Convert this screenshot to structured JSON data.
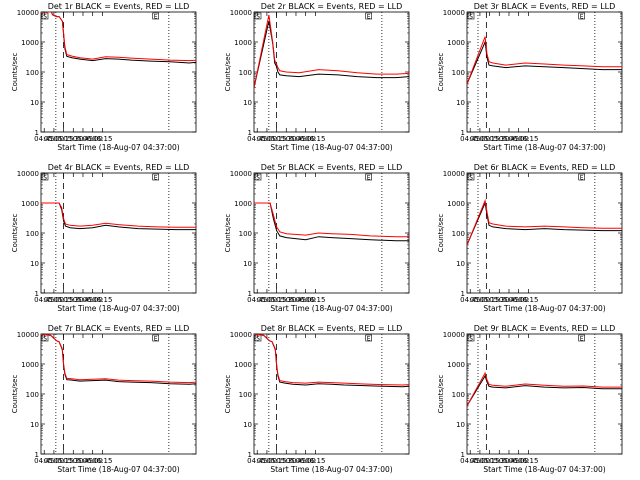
{
  "legend_text": "BLACK = Events, RED = LLD",
  "corner_labels": [
    "S",
    "E"
  ],
  "xlabel": "Start Time (18-Aug-07 04:37:00)",
  "ylabel": "Counts/sec",
  "colors": {
    "events": "#000000",
    "lld": "#ff0000"
  },
  "time_ticks": [
    "04:45",
    "05:00",
    "05:15",
    "05:30",
    "05:45",
    "06:00",
    "06:15"
  ],
  "panels": [
    {
      "title": "Det 1r",
      "chart_data": {
        "type": "line",
        "yscale": "log",
        "ylim": [
          1,
          10000
        ],
        "xlim": [
          -20,
          220
        ],
        "y_ticks": [
          "1",
          "10",
          "100",
          "1000",
          "10000"
        ],
        "markers": {
          "dotted": [
            3,
            178
          ],
          "dashed": [
            15
          ]
        },
        "series": [
          {
            "name": "Events",
            "x": [
              -20,
              -4,
              -2,
              4,
              8,
              13,
              15,
              17,
              20,
              28,
              40,
              60,
              80,
              100,
              120,
              150,
              180,
              210,
              220
            ],
            "values": [
              10000,
              10000,
              8000,
              7000,
              7000,
              5000,
              1800,
              600,
              330,
              300,
              270,
              240,
              280,
              270,
              250,
              230,
              220,
              200,
              210
            ]
          },
          {
            "name": "LLD",
            "x": [
              -20,
              -4,
              -2,
              4,
              8,
              13,
              15,
              17,
              20,
              28,
              40,
              60,
              80,
              100,
              120,
              150,
              180,
              210,
              220
            ],
            "values": [
              10000,
              10000,
              8000,
              7000,
              7000,
              5000,
              2000,
              700,
              380,
              340,
              300,
              270,
              320,
              310,
              290,
              270,
              250,
              240,
              245
            ]
          }
        ]
      }
    },
    {
      "title": "Det 2r",
      "chart_data": {
        "type": "line",
        "yscale": "log",
        "ylim": [
          1,
          10000
        ],
        "xlim": [
          -20,
          220
        ],
        "y_ticks": [
          "1",
          "10",
          "100",
          "1000",
          "10000"
        ],
        "markers": {
          "dotted": [
            3,
            178
          ],
          "dashed": [
            15
          ]
        },
        "series": [
          {
            "name": "Events",
            "x": [
              -20,
              3,
              9,
              12,
              15,
              17,
              20,
              30,
              50,
              80,
              110,
              140,
              170,
              200,
              220
            ],
            "values": [
              30,
              5000,
              900,
              200,
              150,
              100,
              80,
              75,
              70,
              85,
              80,
              70,
              65,
              65,
              70
            ]
          },
          {
            "name": "LLD",
            "x": [
              -20,
              3,
              9,
              12,
              15,
              17,
              20,
              30,
              50,
              80,
              110,
              140,
              170,
              200,
              220
            ],
            "values": [
              30,
              8000,
              1000,
              250,
              180,
              140,
              110,
              100,
              95,
              120,
              110,
              95,
              85,
              85,
              90
            ]
          }
        ]
      }
    },
    {
      "title": "Det 3r",
      "chart_data": {
        "type": "line",
        "yscale": "log",
        "ylim": [
          1,
          10000
        ],
        "xlim": [
          -20,
          220
        ],
        "y_ticks": [
          "1",
          "10",
          "100",
          "1000",
          "10000"
        ],
        "markers": {
          "dotted": [
            -3,
            178
          ],
          "dashed": [
            10
          ]
        },
        "series": [
          {
            "name": "Events",
            "x": [
              -20,
              8,
              11,
              14,
              20,
              40,
              70,
              100,
              130,
              160,
              190,
              220
            ],
            "values": [
              40,
              1000,
              300,
              170,
              160,
              140,
              160,
              150,
              140,
              130,
              120,
              120
            ]
          },
          {
            "name": "LLD",
            "x": [
              -20,
              8,
              11,
              14,
              20,
              40,
              70,
              100,
              130,
              160,
              190,
              220
            ],
            "values": [
              40,
              1500,
              400,
              220,
              200,
              170,
              200,
              185,
              170,
              160,
              150,
              150
            ]
          }
        ]
      }
    },
    {
      "title": "Det 4r",
      "chart_data": {
        "type": "line",
        "yscale": "log",
        "ylim": [
          1,
          10000
        ],
        "xlim": [
          -20,
          220
        ],
        "y_ticks": [
          "1",
          "10",
          "100",
          "1000",
          "10000"
        ],
        "markers": {
          "dotted": [
            3,
            178
          ],
          "dashed": [
            15
          ]
        },
        "series": [
          {
            "name": "Events",
            "x": [
              -20,
              8,
              12,
              15,
              18,
              25,
              40,
              60,
              80,
              100,
              130,
              160,
              190,
              220
            ],
            "values": [
              1000,
              1000,
              600,
              250,
              170,
              150,
              140,
              150,
              180,
              160,
              140,
              135,
              130,
              130
            ]
          },
          {
            "name": "LLD",
            "x": [
              -20,
              8,
              12,
              15,
              18,
              25,
              40,
              60,
              80,
              100,
              130,
              160,
              190,
              220
            ],
            "values": [
              1000,
              1000,
              700,
              300,
              200,
              180,
              170,
              180,
              210,
              190,
              170,
              160,
              155,
              155
            ]
          }
        ]
      }
    },
    {
      "title": "Det 5r",
      "chart_data": {
        "type": "line",
        "yscale": "log",
        "ylim": [
          1,
          10000
        ],
        "xlim": [
          -20,
          220
        ],
        "y_ticks": [
          "1",
          "10",
          "100",
          "1000",
          "10000"
        ],
        "markers": {
          "dotted": [
            3,
            178
          ],
          "dashed": [
            15
          ]
        },
        "series": [
          {
            "name": "Events",
            "x": [
              -20,
              5,
              10,
              15,
              20,
              30,
              60,
              80,
              100,
              130,
              160,
              200,
              220
            ],
            "values": [
              1000,
              1000,
              300,
              120,
              80,
              70,
              60,
              75,
              70,
              65,
              60,
              55,
              55
            ]
          },
          {
            "name": "LLD",
            "x": [
              -20,
              5,
              10,
              15,
              20,
              30,
              60,
              80,
              100,
              130,
              160,
              200,
              220
            ],
            "values": [
              1000,
              1000,
              400,
              160,
              110,
              95,
              85,
              100,
              95,
              90,
              80,
              75,
              75
            ]
          }
        ]
      }
    },
    {
      "title": "Det 6r",
      "chart_data": {
        "type": "line",
        "yscale": "log",
        "ylim": [
          1,
          10000
        ],
        "xlim": [
          -20,
          220
        ],
        "y_ticks": [
          "1",
          "10",
          "100",
          "1000",
          "10000"
        ],
        "markers": {
          "dotted": [
            -3,
            178
          ],
          "dashed": [
            10
          ]
        },
        "series": [
          {
            "name": "Events",
            "x": [
              -20,
              8,
              11,
              14,
              20,
              40,
              70,
              100,
              130,
              160,
              190,
              220
            ],
            "values": [
              40,
              1000,
              400,
              180,
              160,
              140,
              130,
              140,
              130,
              125,
              120,
              120
            ]
          },
          {
            "name": "LLD",
            "x": [
              -20,
              8,
              11,
              14,
              20,
              40,
              70,
              100,
              130,
              160,
              190,
              220
            ],
            "values": [
              40,
              1200,
              500,
              220,
              200,
              170,
              160,
              170,
              160,
              150,
              145,
              145
            ]
          }
        ]
      }
    },
    {
      "title": "Det 7r",
      "chart_data": {
        "type": "line",
        "yscale": "log",
        "ylim": [
          1,
          10000
        ],
        "xlim": [
          -20,
          220
        ],
        "y_ticks": [
          "1",
          "10",
          "100",
          "1000",
          "10000"
        ],
        "markers": {
          "dotted": [
            3,
            178
          ],
          "dashed": [
            15
          ]
        },
        "series": [
          {
            "name": "Events",
            "x": [
              -20,
              -5,
              4,
              8,
              13,
              15,
              17,
              20,
              28,
              40,
              60,
              80,
              100,
              120,
              150,
              180,
              210,
              220
            ],
            "values": [
              10000,
              9000,
              6000,
              5500,
              3000,
              900,
              450,
              300,
              290,
              270,
              280,
              290,
              260,
              250,
              240,
              220,
              210,
              220
            ]
          },
          {
            "name": "LLD",
            "x": [
              -20,
              -5,
              4,
              8,
              13,
              15,
              17,
              20,
              28,
              40,
              60,
              80,
              100,
              120,
              150,
              180,
              210,
              220
            ],
            "values": [
              10000,
              9000,
              6000,
              5500,
              3200,
              1000,
              500,
              330,
              320,
              300,
              310,
              320,
              290,
              280,
              270,
              250,
              240,
              250
            ]
          }
        ]
      }
    },
    {
      "title": "Det 8r",
      "chart_data": {
        "type": "line",
        "yscale": "log",
        "ylim": [
          1,
          10000
        ],
        "xlim": [
          -20,
          220
        ],
        "y_ticks": [
          "1",
          "10",
          "100",
          "1000",
          "10000"
        ],
        "markers": {
          "dotted": [
            3,
            178
          ],
          "dashed": [
            15
          ]
        },
        "series": [
          {
            "name": "Events",
            "x": [
              -20,
              -5,
              4,
              8,
              13,
              15,
              17,
              20,
              28,
              40,
              60,
              80,
              100,
              120,
              150,
              180,
              210,
              220
            ],
            "values": [
              10000,
              9000,
              6000,
              5500,
              3000,
              900,
              400,
              250,
              230,
              210,
              200,
              220,
              210,
              200,
              190,
              180,
              175,
              180
            ]
          },
          {
            "name": "LLD",
            "x": [
              -20,
              -5,
              4,
              8,
              13,
              15,
              17,
              20,
              28,
              40,
              60,
              80,
              100,
              120,
              150,
              180,
              210,
              220
            ],
            "values": [
              10000,
              9000,
              6000,
              5500,
              3200,
              1000,
              450,
              280,
              260,
              240,
              230,
              250,
              240,
              230,
              215,
              205,
              200,
              205
            ]
          }
        ]
      }
    },
    {
      "title": "Det 9r",
      "chart_data": {
        "type": "line",
        "yscale": "log",
        "ylim": [
          1,
          10000
        ],
        "xlim": [
          -20,
          220
        ],
        "y_ticks": [
          "1",
          "10",
          "100",
          "1000",
          "10000"
        ],
        "markers": {
          "dotted": [
            -3,
            178
          ],
          "dashed": [
            10
          ]
        },
        "series": [
          {
            "name": "Events",
            "x": [
              -20,
              8,
              11,
              14,
              20,
              40,
              70,
              100,
              130,
              160,
              190,
              220
            ],
            "values": [
              40,
              400,
              250,
              180,
              170,
              160,
              190,
              170,
              160,
              165,
              150,
              150
            ]
          },
          {
            "name": "LLD",
            "x": [
              -20,
              8,
              11,
              14,
              20,
              40,
              70,
              100,
              130,
              160,
              190,
              220
            ],
            "values": [
              40,
              500,
              300,
              210,
              195,
              180,
              215,
              195,
              180,
              185,
              170,
              170
            ]
          }
        ]
      }
    }
  ]
}
